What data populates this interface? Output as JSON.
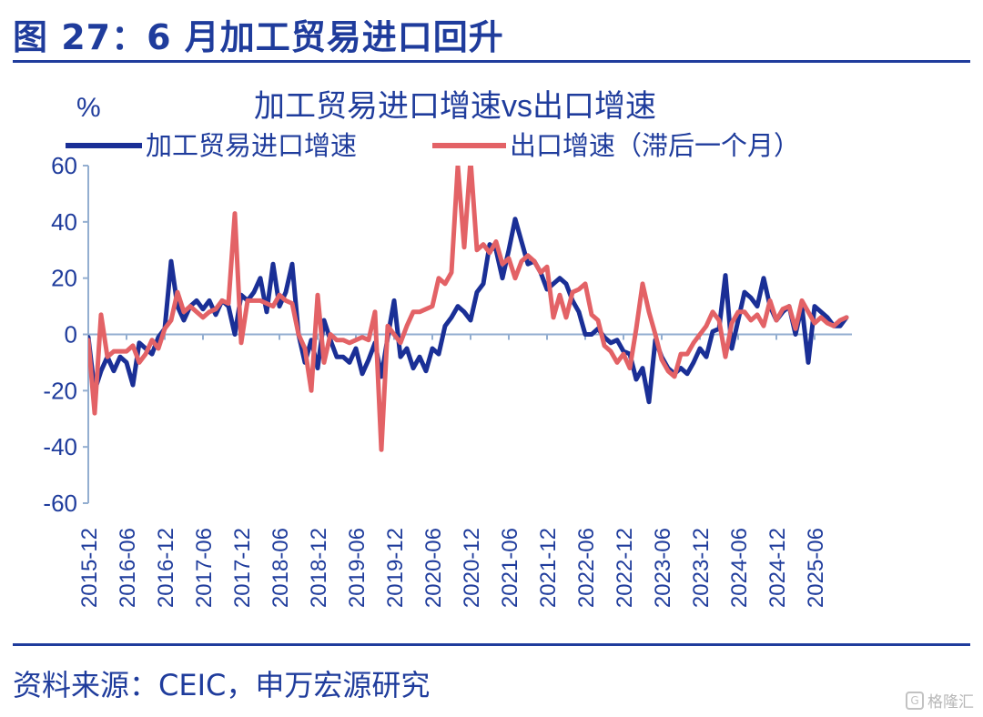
{
  "figure": {
    "title": "图 27：6 月加工贸易进口回升",
    "source": "资料来源：CEIC，申万宏源研究",
    "watermark": "格隆汇",
    "watermark_icon": "glh-logo-icon"
  },
  "colors": {
    "frame": "#1f3c9c",
    "axis": "#93aed0",
    "series_processing_imports": "#1a2f96",
    "series_exports_lagged": "#e36266"
  },
  "chart_data": {
    "type": "line",
    "title": "加工贸易进口增速vs出口增速",
    "ylabel": "%",
    "xlabel": "",
    "ylim": [
      -60,
      60
    ],
    "yticks": [
      -60,
      -40,
      -20,
      0,
      20,
      40,
      60
    ],
    "ytick_labels": [
      "-60",
      "-40",
      "-20",
      "0",
      "20",
      "40",
      "60"
    ],
    "x_start": "2015-12",
    "x_end": "2025-06",
    "xtick_labels": [
      "2015-12",
      "2016-06",
      "2016-12",
      "2017-06",
      "2017-12",
      "2018-06",
      "2018-12",
      "2019-06",
      "2019-12",
      "2020-06",
      "2020-12",
      "2021-06",
      "2021-12",
      "2022-06",
      "2022-12",
      "2023-06",
      "2023-12",
      "2024-06",
      "2024-12",
      "2025-06"
    ],
    "grid": false,
    "legend": "top",
    "series": [
      {
        "name": "加工贸易进口增速",
        "values": [
          -1,
          -20,
          -13,
          -8,
          -13,
          -8,
          -10,
          -18,
          -3,
          -5,
          -7,
          -1,
          2,
          26,
          10,
          5,
          10,
          12,
          9,
          12,
          7,
          12,
          10,
          0,
          14,
          12,
          15,
          20,
          8,
          25,
          10,
          15,
          25,
          0,
          -10,
          -2,
          -12,
          5,
          -2,
          -8,
          -8,
          -10,
          -5,
          -14,
          -9,
          -3,
          -15,
          -1,
          12,
          -8,
          -5,
          -12,
          -8,
          -13,
          -5,
          -7,
          3,
          6,
          10,
          8,
          5,
          15,
          18,
          32,
          30,
          20,
          30,
          41,
          33,
          25,
          26,
          22,
          16,
          18,
          20,
          18,
          12,
          8,
          0,
          0,
          2,
          -1,
          -3,
          -2,
          -6,
          -7,
          -16,
          -12,
          -24,
          -2,
          -8,
          -12,
          -14,
          -12,
          -14,
          -10,
          -5,
          -8,
          1,
          2,
          21,
          -5,
          5,
          15,
          13,
          10,
          20,
          10,
          5,
          8,
          10,
          0,
          10,
          -10,
          10,
          8,
          6,
          3,
          3,
          6
        ]
      },
      {
        "name": "出口增速（滞后一个月）",
        "values": [
          -2,
          -28,
          7,
          -8,
          -6,
          -6,
          -6,
          -4,
          -10,
          -7,
          -2,
          -5,
          2,
          5,
          15,
          8,
          10,
          8,
          6,
          8,
          9,
          12,
          11,
          43,
          -3,
          12,
          12,
          12,
          11,
          10,
          14,
          12,
          11,
          0,
          -5,
          -20,
          14,
          -10,
          0,
          -2,
          -2,
          -3,
          -2,
          -1,
          -2,
          8,
          -41,
          3,
          0,
          -3,
          3,
          8,
          8,
          9,
          10,
          20,
          18,
          22,
          60,
          31,
          62,
          30,
          32,
          29,
          33,
          25,
          27,
          20,
          26,
          28,
          26,
          22,
          24,
          6,
          14,
          6,
          15,
          16,
          18,
          7,
          5,
          -4,
          -6,
          -10,
          -7,
          -12,
          2,
          18,
          8,
          0,
          -9,
          -13,
          -15,
          -7,
          -7,
          -3,
          0,
          3,
          8,
          5,
          -8,
          4,
          8,
          8,
          5,
          7,
          3,
          12,
          5,
          9,
          10,
          2,
          12,
          8,
          4,
          6,
          4,
          3,
          5,
          6
        ]
      }
    ]
  }
}
